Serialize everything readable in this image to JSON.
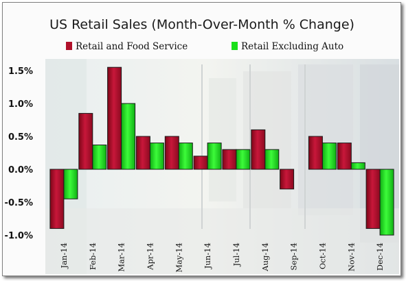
{
  "chart_data": {
    "type": "bar",
    "title": "US Retail Sales (Month-Over-Month % Change)",
    "categories": [
      "Jan-14",
      "Feb-14",
      "Mar-14",
      "Apr-14",
      "May-14",
      "Jun-14",
      "Jul-14",
      "Aug-14",
      "Sep-14",
      "Oct-14",
      "Nov-14",
      "Dec-14"
    ],
    "series": [
      {
        "name": "Retail and Food Service",
        "color": "#b0102a",
        "values": [
          -0.9,
          0.85,
          1.55,
          0.5,
          0.5,
          0.2,
          0.3,
          0.6,
          -0.3,
          0.5,
          0.4,
          -0.9
        ]
      },
      {
        "name": "Retail Excluding Auto",
        "color": "#19e019",
        "values": [
          -0.45,
          0.37,
          1.0,
          0.4,
          0.4,
          0.4,
          0.3,
          0.3,
          0.0,
          0.4,
          0.1,
          -1.0
        ]
      }
    ],
    "ylim": [
      -1.0,
      1.75
    ],
    "yticks": [
      "1.5%",
      "1.0%",
      "0.5%",
      "0.0%",
      "-0.5%",
      "-1.0%"
    ],
    "ytick_values": [
      1.5,
      1.0,
      0.5,
      0.0,
      -0.5,
      -1.0
    ],
    "legend_position": "top",
    "grid": false,
    "background": "photo of shopping mall storefronts"
  }
}
